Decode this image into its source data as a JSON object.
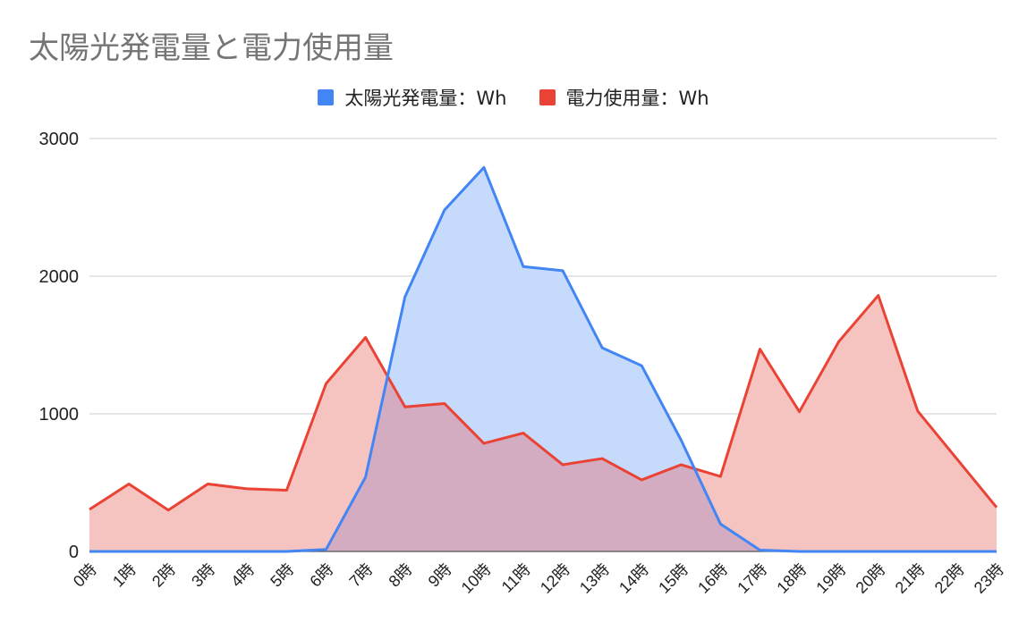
{
  "chart_data": {
    "type": "area",
    "title": "太陽光発電量と電力使用量",
    "categories": [
      "0時",
      "1時",
      "2時",
      "3時",
      "4時",
      "5時",
      "6時",
      "7時",
      "8時",
      "9時",
      "10時",
      "11時",
      "12時",
      "13時",
      "14時",
      "15時",
      "16時",
      "17時",
      "18時",
      "19時",
      "20時",
      "21時",
      "22時",
      "23時"
    ],
    "series": [
      {
        "name": "太陽光発電量：Wh",
        "color": "#4285F4",
        "fill": "#C6DAFC",
        "values": [
          0,
          0,
          0,
          0,
          0,
          0,
          15,
          540,
          1850,
          2480,
          2790,
          2070,
          2040,
          1480,
          1350,
          810,
          200,
          10,
          0,
          0,
          0,
          0,
          0,
          0
        ]
      },
      {
        "name": "電力使用量：Wh",
        "color": "#EA4335",
        "fill": "#F6C4C0",
        "values": [
          305,
          490,
          300,
          490,
          455,
          445,
          1220,
          1555,
          1050,
          1075,
          785,
          860,
          630,
          675,
          520,
          630,
          545,
          1470,
          1015,
          1525,
          1860,
          1020,
          670,
          320
        ]
      }
    ],
    "overlap_fill": "#D3ACC2",
    "yticks": [
      "0",
      "1000",
      "2000",
      "3000"
    ],
    "ylim": [
      0,
      3000
    ],
    "grid": true,
    "legend_position": "top"
  }
}
